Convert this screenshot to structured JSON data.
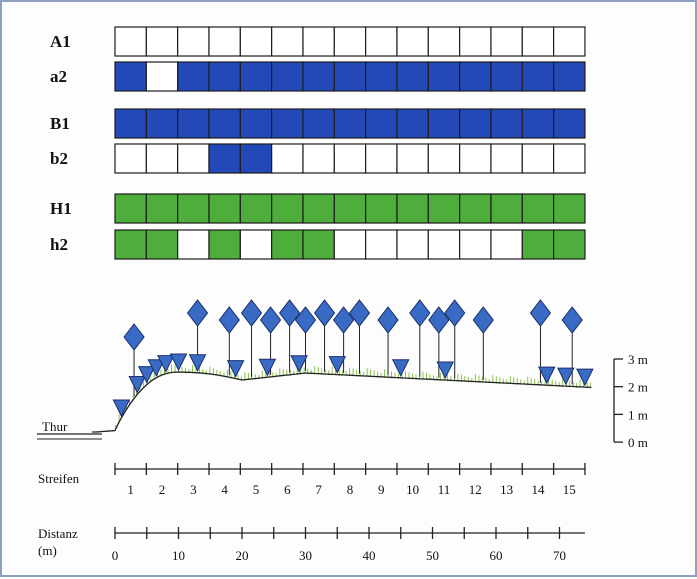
{
  "colors": {
    "blue": "#2348b7",
    "green": "#4fad3b",
    "white": "#ffffff",
    "frame": "#8fa0c4",
    "marker": "#3a6bc4"
  },
  "rows": [
    {
      "label": "A1",
      "color": "blue",
      "cells": [
        0,
        0,
        0,
        0,
        0,
        0,
        0,
        0,
        0,
        0,
        0,
        0,
        0,
        0,
        0
      ]
    },
    {
      "label": "a2",
      "color": "blue",
      "cells": [
        1,
        0,
        1,
        1,
        1,
        1,
        1,
        1,
        1,
        1,
        1,
        1,
        1,
        1,
        1
      ]
    },
    {
      "label": "B1",
      "color": "blue",
      "cells": [
        1,
        1,
        1,
        1,
        1,
        1,
        1,
        1,
        1,
        1,
        1,
        1,
        1,
        1,
        1
      ]
    },
    {
      "label": "b2",
      "color": "blue",
      "cells": [
        0,
        0,
        0,
        1,
        1,
        0,
        0,
        0,
        0,
        0,
        0,
        0,
        0,
        0,
        0
      ]
    },
    {
      "label": "H1",
      "color": "green",
      "cells": [
        1,
        1,
        1,
        1,
        1,
        1,
        1,
        1,
        1,
        1,
        1,
        1,
        1,
        1,
        1
      ]
    },
    {
      "label": "h2",
      "color": "green",
      "cells": [
        1,
        1,
        0,
        1,
        0,
        1,
        1,
        0,
        0,
        0,
        0,
        0,
        0,
        1,
        1
      ]
    }
  ],
  "profile": {
    "river_label": "Thur",
    "height_ticks": [
      "3 m",
      "2 m",
      "1 m",
      "0 m"
    ],
    "upper_markers": [
      3,
      13,
      18,
      21.5,
      24.5,
      27.5,
      30,
      33,
      36,
      38.5,
      43,
      48,
      51,
      53.5,
      58,
      67,
      72
    ],
    "lower_markers": [
      1,
      3.5,
      5,
      6.5,
      8,
      10,
      13,
      19,
      24,
      29,
      35,
      45,
      52,
      68,
      71,
      74
    ]
  },
  "strips": {
    "title": "Streifen",
    "labels": [
      "1",
      "2",
      "3",
      "4",
      "5",
      "6",
      "7",
      "8",
      "9",
      "10",
      "11",
      "12",
      "13",
      "14",
      "15"
    ]
  },
  "distance": {
    "title_line1": "Distanz",
    "title_line2": "(m)",
    "labels": [
      "0",
      "10",
      "20",
      "30",
      "40",
      "50",
      "60",
      "70"
    ]
  }
}
